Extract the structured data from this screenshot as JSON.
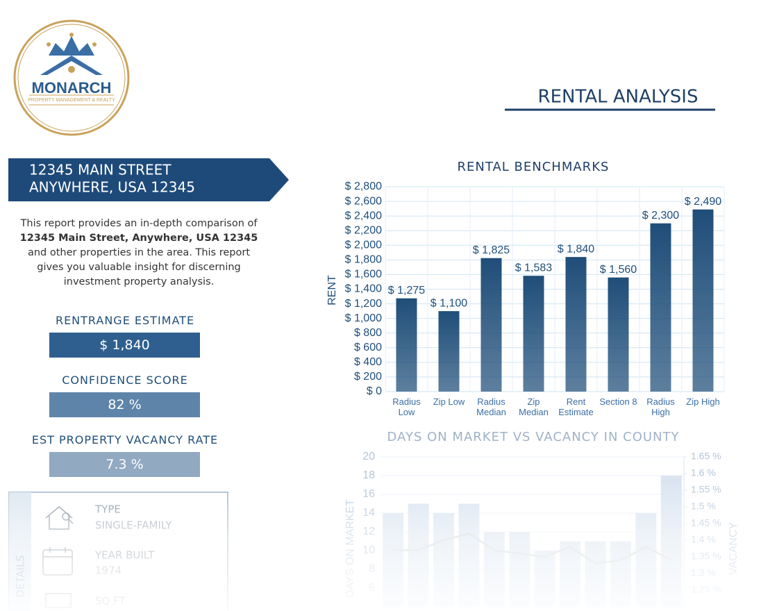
{
  "logo": {
    "name": "MONARCH",
    "tagline": "PROPERTY MANAGEMENT & REALTY"
  },
  "header": {
    "title": "RENTAL ANALYSIS"
  },
  "address": {
    "line1": "12345 MAIN STREET",
    "line2": "ANYWHERE, USA 12345"
  },
  "description": [
    "This report provides an in-depth comparison of",
    "12345 Main Street, Anywhere, USA 12345",
    "and other properties in the area. This report gives you valuable insight for discerning investment property analysis."
  ],
  "metrics": [
    {
      "label": "RENTRANGE ESTIMATE",
      "value": "$ 1,840"
    },
    {
      "label": "CONFIDENCE SCORE",
      "value": "82 %"
    },
    {
      "label": "EST PROPERTY VACANCY RATE",
      "value": "7.3 %"
    }
  ],
  "details": {
    "title": "DETAILS",
    "items": [
      {
        "label": "TYPE",
        "value": "SINGLE-FAMILY"
      },
      {
        "label": "YEAR BUILT",
        "value": "1974"
      },
      {
        "label": "SQ FT"
      }
    ]
  },
  "chart_data": [
    {
      "type": "bar",
      "title": "RENTAL BENCHMARKS",
      "y_label": "RENT",
      "color": "#1f4e79",
      "grid": true,
      "categories": [
        "Radius Low",
        "Zip Low",
        "Radius Median",
        "Zip Median",
        "Rent Estimate",
        "Section 8",
        "Radius High",
        "Zip High"
      ],
      "values": [
        1275,
        1100,
        1825,
        1583,
        1840,
        1560,
        2300,
        2490
      ],
      "value_labels": [
        "$ 1,275",
        "$ 1,100",
        "$ 1,825",
        "$ 1,583",
        "$ 1,840",
        "$ 1,560",
        "$ 2,300",
        "$ 2,490"
      ],
      "ylim": [
        0,
        2800
      ],
      "yticks": [
        {
          "value": 0,
          "label": "$ 0"
        },
        {
          "value": 200,
          "label": "$ 200"
        },
        {
          "value": 400,
          "label": "$ 400"
        },
        {
          "value": 600,
          "label": "$ 600"
        },
        {
          "value": 800,
          "label": "$ 800"
        },
        {
          "value": 1000,
          "label": "$ 1,000"
        },
        {
          "value": 1200,
          "label": "$ 1,200"
        },
        {
          "value": 1400,
          "label": "$ 1,400"
        },
        {
          "value": 1600,
          "label": "$ 1,600"
        },
        {
          "value": 1800,
          "label": "$ 1,800"
        },
        {
          "value": 2000,
          "label": "$ 2,000"
        },
        {
          "value": 2200,
          "label": "$ 2,200"
        },
        {
          "value": 2400,
          "label": "$ 2,400"
        },
        {
          "value": 2600,
          "label": "$ 2,600"
        },
        {
          "value": 2800,
          "label": "$ 2,800"
        }
      ]
    },
    {
      "type": "combo",
      "title": "DAYS ON MARKET VS VACANCY IN COUNTY",
      "y_label": "DAYS ON MARKET",
      "y2_label": "VACANCY",
      "grid": true,
      "series": [
        {
          "type": "bar",
          "color": "#c3d4e8",
          "values": [
            14,
            15,
            14,
            15,
            12,
            12,
            10,
            11,
            11,
            11,
            14,
            18
          ]
        },
        {
          "type": "line",
          "axis": "y2",
          "color": "#b5b9bf",
          "values": [
            1.37,
            1.37,
            1.4,
            1.42,
            1.37,
            1.36,
            1.35,
            1.38,
            1.33,
            1.34,
            1.38,
            1.34
          ]
        }
      ],
      "ylim": [
        4,
        20
      ],
      "yticks": [
        6,
        8,
        10,
        12,
        14,
        16,
        18,
        20
      ],
      "y2lim": [
        1.2,
        1.65
      ],
      "y2ticks": [
        {
          "value": 1.25,
          "label": "1.25 %"
        },
        {
          "value": 1.3,
          "label": "1.3 %"
        },
        {
          "value": 1.35,
          "label": "1.35 %"
        },
        {
          "value": 1.4,
          "label": "1.4 %"
        },
        {
          "value": 1.45,
          "label": "1.45 %"
        },
        {
          "value": 1.5,
          "label": "1.5 %"
        },
        {
          "value": 1.55,
          "label": "1.55 %"
        },
        {
          "value": 1.6,
          "label": "1.6 %"
        },
        {
          "value": 1.65,
          "label": "1.65 %"
        }
      ]
    }
  ]
}
